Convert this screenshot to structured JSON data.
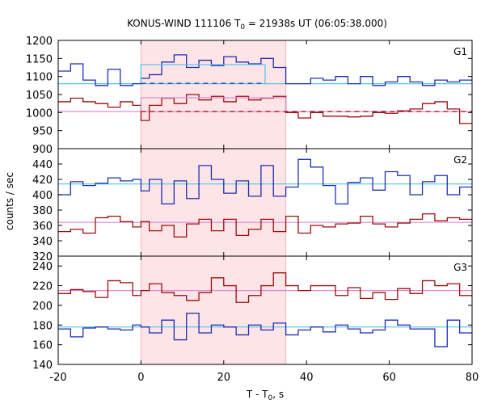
{
  "chart_data": {
    "type": "line",
    "title": "KONUS-WIND 111106 T",
    "title_sub": "0",
    "title_rest": " = 21938s UT (06:05:38.000)",
    "xlabel": "T - T",
    "xlabel_sub": "0",
    "xlabel_rest": ", s",
    "ylabel": "counts / sec",
    "xlim": [
      -20,
      80
    ],
    "x_ticks": [
      -20,
      0,
      20,
      40,
      60,
      80
    ],
    "highlight_interval": [
      0,
      35
    ],
    "colors": {
      "blue": "#1f2fb0",
      "red": "#9a0f0f",
      "light_blue": "#4fc3ea",
      "pink": "#e08ad8",
      "highlight": "#fde4e6"
    },
    "panels": [
      {
        "name": "G1",
        "ylim": [
          900,
          1200
        ],
        "y_ticks": [
          900,
          950,
          1000,
          1050,
          1100,
          1150,
          1200
        ],
        "series": [
          {
            "color": "blue",
            "bin_edges": [
              -20,
              -17,
              -14,
              -11,
              -8,
              -5,
              -2,
              0,
              2,
              5,
              8,
              11,
              14,
              17,
              20,
              23,
              26,
              29,
              32,
              35,
              38,
              41,
              44,
              47,
              50,
              53,
              56,
              59,
              62,
              65,
              68,
              71,
              74,
              77,
              80
            ],
            "values": [
              1115,
              1135,
              1090,
              1075,
              1120,
              1075,
              1080,
              1095,
              1105,
              1140,
              1160,
              1125,
              1145,
              1130,
              1155,
              1140,
              1135,
              1150,
              1125,
              1080,
              1080,
              1095,
              1090,
              1100,
              1080,
              1100,
              1075,
              1085,
              1100,
              1085,
              1075,
              1090,
              1085,
              1090
            ]
          },
          {
            "color": "red",
            "bin_edges": [
              -20,
              -17,
              -14,
              -11,
              -8,
              -5,
              -2,
              0,
              2,
              5,
              8,
              11,
              14,
              17,
              20,
              23,
              26,
              29,
              32,
              35,
              38,
              41,
              44,
              47,
              50,
              53,
              56,
              59,
              62,
              65,
              68,
              71,
              74,
              77,
              80
            ],
            "values": [
              1030,
              1040,
              1030,
              1025,
              1015,
              1030,
              1020,
              978,
              1020,
              1040,
              1025,
              1050,
              1035,
              1045,
              1030,
              1045,
              1035,
              1040,
              1045,
              1000,
              985,
              1000,
              990,
              990,
              988,
              990,
              1000,
              998,
              1005,
              1010,
              1025,
              1030,
              1010,
              970
            ]
          }
        ],
        "background_levels": [
          {
            "color": "light_blue",
            "y": 1080
          },
          {
            "color": "pink",
            "y": 1003
          }
        ],
        "interval_means": [
          {
            "color": "light_blue",
            "x_range": [
              0,
              30
            ],
            "y": 1133,
            "dashed_y": 1081,
            "dash_range": [
              0,
              30
            ]
          },
          {
            "color": "pink",
            "x_range": [
              0,
              35
            ],
            "y": 1041,
            "dashed_y": 1003,
            "dash_range": [
              0,
              80
            ]
          }
        ]
      },
      {
        "name": "G2",
        "ylim": [
          320,
          460
        ],
        "y_ticks": [
          320,
          340,
          360,
          380,
          400,
          420,
          440
        ],
        "series": [
          {
            "color": "blue",
            "bin_edges": [
              -20,
              -17,
              -14,
              -11,
              -8,
              -5,
              -2,
              0,
              2,
              5,
              8,
              11,
              14,
              17,
              20,
              23,
              26,
              29,
              32,
              35,
              38,
              41,
              44,
              47,
              50,
              53,
              56,
              59,
              62,
              65,
              68,
              71,
              74,
              77,
              80
            ],
            "values": [
              400,
              417,
              412,
              415,
              422,
              418,
              420,
              405,
              420,
              388,
              418,
              395,
              438,
              420,
              402,
              418,
              398,
              438,
              398,
              410,
              446,
              436,
              412,
              388,
              416,
              422,
              406,
              430,
              425,
              400,
              417,
              425,
              400,
              410,
              402
            ]
          },
          {
            "color": "red",
            "bin_edges": [
              -20,
              -17,
              -14,
              -11,
              -8,
              -5,
              -2,
              0,
              2,
              5,
              8,
              11,
              14,
              17,
              20,
              23,
              26,
              29,
              32,
              35,
              38,
              41,
              44,
              47,
              50,
              53,
              56,
              59,
              62,
              65,
              68,
              71,
              74,
              77,
              80
            ],
            "values": [
              352,
              355,
              350,
              370,
              372,
              365,
              358,
              365,
              353,
              360,
              345,
              362,
              368,
              353,
              368,
              347,
              355,
              368,
              352,
              372,
              350,
              360,
              358,
              362,
              363,
              372,
              362,
              358,
              363,
              368,
              375,
              366,
              370,
              368,
              362
            ]
          }
        ],
        "background_levels": [
          {
            "color": "light_blue",
            "y": 414
          },
          {
            "color": "pink",
            "y": 364
          }
        ],
        "interval_means": []
      },
      {
        "name": "G3",
        "ylim": [
          140,
          250
        ],
        "y_ticks": [
          140,
          160,
          180,
          200,
          220,
          240
        ],
        "series": [
          {
            "color": "red",
            "bin_edges": [
              -20,
              -17,
              -14,
              -11,
              -8,
              -5,
              -2,
              0,
              2,
              5,
              8,
              11,
              14,
              17,
              20,
              23,
              26,
              29,
              32,
              35,
              38,
              41,
              44,
              47,
              50,
              53,
              56,
              59,
              62,
              65,
              68,
              71,
              74,
              77,
              80
            ],
            "values": [
              212,
              216,
              214,
              208,
              225,
              223,
              210,
              215,
              222,
              213,
              210,
              205,
              213,
              228,
              220,
              203,
              210,
              220,
              233,
              220,
              215,
              220,
              220,
              210,
              218,
              207,
              213,
              206,
              217,
              212,
              225,
              220,
              222,
              210,
              218
            ]
          },
          {
            "color": "blue",
            "bin_edges": [
              -20,
              -17,
              -14,
              -11,
              -8,
              -5,
              -2,
              0,
              2,
              5,
              8,
              11,
              14,
              17,
              20,
              23,
              26,
              29,
              32,
              35,
              38,
              41,
              44,
              47,
              50,
              53,
              56,
              59,
              62,
              65,
              68,
              71,
              74,
              77,
              80
            ],
            "values": [
              176,
              168,
              177,
              178,
              176,
              175,
              180,
              178,
              172,
              185,
              165,
              192,
              172,
              180,
              178,
              170,
              180,
              175,
              182,
              170,
              175,
              178,
              173,
              180,
              176,
              172,
              175,
              185,
              180,
              176,
              176,
              158,
              185,
              172,
              176
            ]
          }
        ],
        "background_levels": [
          {
            "color": "pink",
            "y": 215
          },
          {
            "color": "light_blue",
            "y": 178
          }
        ],
        "interval_means": []
      }
    ]
  }
}
